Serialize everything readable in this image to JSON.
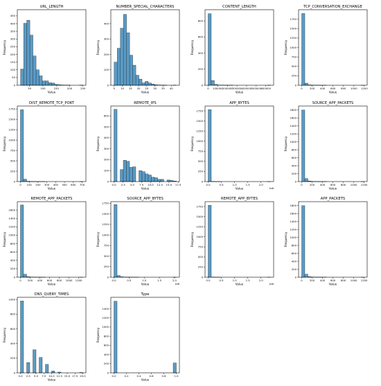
{
  "chart_data": [
    {
      "type": "bar",
      "title": "URL_LENGTH",
      "xlabel": "Value",
      "ylabel": "Frequency",
      "x_min": 16,
      "x_max": 249,
      "xlim": [
        4,
        261
      ],
      "ylim": [
        0,
        490
      ],
      "xticks": [
        50,
        100,
        150,
        200,
        250
      ],
      "yticks": [
        0,
        50,
        100,
        150,
        200,
        250,
        300,
        350,
        400,
        450
      ],
      "values": [
        105,
        402,
        422,
        325,
        190,
        100,
        61,
        28,
        28,
        16,
        14,
        6,
        3,
        2,
        1,
        1,
        0,
        0,
        0,
        1
      ]
    },
    {
      "type": "bar",
      "title": "NUMBER_SPECIAL_CHARACTERS",
      "xlabel": "Value",
      "ylabel": "Frequency",
      "x_min": 5,
      "x_max": 43,
      "xlim": [
        3,
        45
      ],
      "ylim": [
        0,
        490
      ],
      "xticks": [
        5,
        10,
        15,
        20,
        25,
        30,
        35,
        40
      ],
      "yticks": [
        0,
        100,
        200,
        300,
        400
      ],
      "values": [
        150,
        240,
        370,
        460,
        340,
        195,
        130,
        65,
        40,
        15,
        25,
        15,
        8,
        3,
        2,
        1,
        1,
        0,
        0,
        1
      ]
    },
    {
      "type": "bar",
      "title": "CONTENT_LENGTH",
      "xlabel": "Value",
      "ylabel": "Frequency",
      "x_min": 0,
      "x_max": 649263,
      "xlim": [
        -32000,
        681000
      ],
      "ylim": [
        0,
        940
      ],
      "xticks": [
        0,
        100000,
        200000,
        300000,
        400000,
        500000,
        600000
      ],
      "yticks": [
        0,
        200,
        400,
        600,
        800
      ],
      "values": [
        890,
        58,
        10,
        3,
        2,
        1,
        1,
        1,
        0,
        0,
        0,
        0,
        0,
        0,
        0,
        0,
        0,
        0,
        0,
        1
      ]
    },
    {
      "type": "bar",
      "title": "TCP_CONVERSATION_EXCHANGE",
      "xlabel": "Value",
      "ylabel": "Frequency",
      "x_min": 0,
      "x_max": 1194,
      "xlim": [
        -60,
        1254
      ],
      "ylim": [
        0,
        2000
      ],
      "xticks": [
        0,
        200,
        400,
        600,
        800,
        1000,
        1200
      ],
      "yticks": [
        0,
        250,
        500,
        750,
        1000,
        1250,
        1500,
        1750
      ],
      "values": [
        1900,
        55,
        10,
        4,
        3,
        2,
        1,
        1,
        0,
        0,
        0,
        0,
        0,
        0,
        0,
        0,
        0,
        0,
        0,
        1
      ]
    },
    {
      "type": "bar",
      "title": "DIST_REMOTE_TCP_PORT",
      "xlabel": "Value",
      "ylabel": "Frequency",
      "x_min": 0,
      "x_max": 708,
      "xlim": [
        -35,
        743
      ],
      "ylim": [
        0,
        1820
      ],
      "xticks": [
        0,
        100,
        200,
        300,
        400,
        500,
        600,
        700
      ],
      "yticks": [
        0,
        250,
        500,
        750,
        1000,
        1250,
        1500,
        1750
      ],
      "values": [
        1730,
        58,
        8,
        3,
        2,
        1,
        1,
        1,
        0,
        0,
        0,
        0,
        0,
        0,
        0,
        0,
        0,
        0,
        0,
        1
      ]
    },
    {
      "type": "bar",
      "title": "REMOTE_IPS",
      "xlabel": "Value",
      "ylabel": "Frequency",
      "x_min": 0,
      "x_max": 17,
      "xlim": [
        -0.85,
        17.85
      ],
      "ylim": [
        0,
        690
      ],
      "xticks": [
        0.0,
        2.5,
        5.0,
        7.5,
        10.0,
        12.5,
        15.0,
        17.5
      ],
      "yticks": [
        0,
        100,
        200,
        300,
        400,
        500,
        600
      ],
      "values": [
        660,
        0,
        110,
        195,
        185,
        130,
        135,
        0,
        100,
        90,
        70,
        60,
        40,
        35,
        20,
        20,
        0,
        15,
        10,
        5
      ]
    },
    {
      "type": "bar",
      "title": "APP_BYTES",
      "xlabel": "Value",
      "ylabel": "Frequency",
      "offset_label": "1e6",
      "x_min": 0,
      "x_max": 2.36,
      "xlim": [
        -0.118,
        2.478
      ],
      "ylim": [
        0,
        1870
      ],
      "xticks": [
        0.0,
        0.5,
        1.0,
        1.5,
        2.0
      ],
      "yticks": [
        0,
        250,
        500,
        750,
        1000,
        1250,
        1500,
        1750
      ],
      "values": [
        1780,
        4,
        1,
        1,
        0,
        0,
        0,
        0,
        0,
        0,
        0,
        0,
        0,
        0,
        0,
        0,
        0,
        0,
        0,
        1
      ]
    },
    {
      "type": "bar",
      "title": "SOURCE_APP_PACKETS",
      "xlabel": "Value",
      "ylabel": "Frequency",
      "x_min": 0,
      "x_max": 1198,
      "xlim": [
        -60,
        1258
      ],
      "ylim": [
        0,
        1900
      ],
      "xticks": [
        0,
        200,
        400,
        600,
        800,
        1000,
        1200
      ],
      "yticks": [
        0,
        200,
        400,
        600,
        800,
        1000,
        1200,
        1400,
        1600,
        1800
      ],
      "values": [
        1800,
        75,
        15,
        5,
        3,
        2,
        1,
        1,
        0,
        0,
        0,
        0,
        0,
        0,
        0,
        0,
        0,
        0,
        0,
        1
      ]
    },
    {
      "type": "bar",
      "title": "REMOTE_APP_PACKETS",
      "xlabel": "Value",
      "ylabel": "Frequency",
      "x_min": 0,
      "x_max": 1284,
      "xlim": [
        -64,
        1348
      ],
      "ylim": [
        0,
        1800
      ],
      "xticks": [
        0,
        200,
        400,
        600,
        800,
        1000,
        1200
      ],
      "yticks": [
        0,
        200,
        400,
        600,
        800,
        1000,
        1200,
        1400,
        1600
      ],
      "values": [
        1720,
        70,
        12,
        5,
        3,
        2,
        1,
        1,
        0,
        0,
        0,
        0,
        0,
        0,
        0,
        0,
        0,
        0,
        0,
        1
      ]
    },
    {
      "type": "bar",
      "title": "SOURCE_APP_BYTES",
      "xlabel": "Value",
      "ylabel": "Frequency",
      "offset_label": "1e6",
      "x_min": 0,
      "x_max": 2.06,
      "xlim": [
        -0.103,
        2.163
      ],
      "ylim": [
        0,
        1790
      ],
      "xticks": [
        0.0,
        0.5,
        1.0,
        1.5,
        2.0
      ],
      "yticks": [
        0,
        250,
        500,
        750,
        1000,
        1250,
        1500,
        1750
      ],
      "values": [
        1720,
        40,
        10,
        5,
        3,
        2,
        1,
        1,
        0,
        0,
        0,
        0,
        0,
        0,
        0,
        0,
        0,
        0,
        0,
        1
      ]
    },
    {
      "type": "bar",
      "title": "REMOTE_APP_BYTES",
      "xlabel": "Value",
      "ylabel": "Frequency",
      "offset_label": "1e6",
      "x_min": 0,
      "x_max": 2.36,
      "xlim": [
        -0.118,
        2.478
      ],
      "ylim": [
        0,
        1870
      ],
      "xticks": [
        0.0,
        0.5,
        1.0,
        1.5,
        2.0
      ],
      "yticks": [
        0,
        250,
        500,
        750,
        1000,
        1250,
        1500,
        1750
      ],
      "values": [
        1780,
        4,
        1,
        1,
        0,
        0,
        0,
        0,
        0,
        0,
        0,
        0,
        0,
        0,
        0,
        0,
        0,
        0,
        0,
        1
      ]
    },
    {
      "type": "bar",
      "title": "APP_PACKETS",
      "xlabel": "Value",
      "ylabel": "Frequency",
      "x_min": 0,
      "x_max": 1198,
      "xlim": [
        -60,
        1258
      ],
      "ylim": [
        0,
        1900
      ],
      "xticks": [
        0,
        200,
        400,
        600,
        800,
        1000,
        1200
      ],
      "yticks": [
        0,
        200,
        400,
        600,
        800,
        1000,
        1200,
        1400,
        1600,
        1800
      ],
      "values": [
        1800,
        75,
        15,
        5,
        3,
        2,
        1,
        1,
        0,
        0,
        0,
        0,
        0,
        0,
        0,
        0,
        0,
        0,
        0,
        1
      ]
    },
    {
      "type": "bar",
      "title": "DNS_QUERY_TIMES",
      "xlabel": "Value",
      "ylabel": "Frequency",
      "x_min": 0,
      "x_max": 20,
      "xlim": [
        -1,
        21
      ],
      "ylim": [
        0,
        1030
      ],
      "xticks": [
        0.0,
        2.5,
        5.0,
        7.5,
        10.0,
        12.5,
        15.0,
        17.5,
        20.0
      ],
      "yticks": [
        0,
        200,
        400,
        600,
        800,
        1000
      ],
      "values": [
        980,
        0,
        140,
        0,
        315,
        0,
        210,
        0,
        115,
        0,
        25,
        0,
        10,
        0,
        0,
        0,
        0,
        0,
        0,
        5
      ]
    },
    {
      "type": "bar",
      "title": "Type",
      "xlabel": "Value",
      "ylabel": "Frequency",
      "x_min": 0,
      "x_max": 1,
      "xlim": [
        -0.05,
        1.05
      ],
      "ylim": [
        0,
        1650
      ],
      "xticks": [
        0.0,
        0.2,
        0.4,
        0.6,
        0.8,
        1.0
      ],
      "yticks": [
        0,
        200,
        400,
        600,
        800,
        1000,
        1200,
        1400
      ],
      "values": [
        1565,
        0,
        0,
        0,
        0,
        0,
        0,
        0,
        0,
        0,
        0,
        0,
        0,
        0,
        0,
        0,
        0,
        0,
        0,
        216
      ]
    }
  ]
}
